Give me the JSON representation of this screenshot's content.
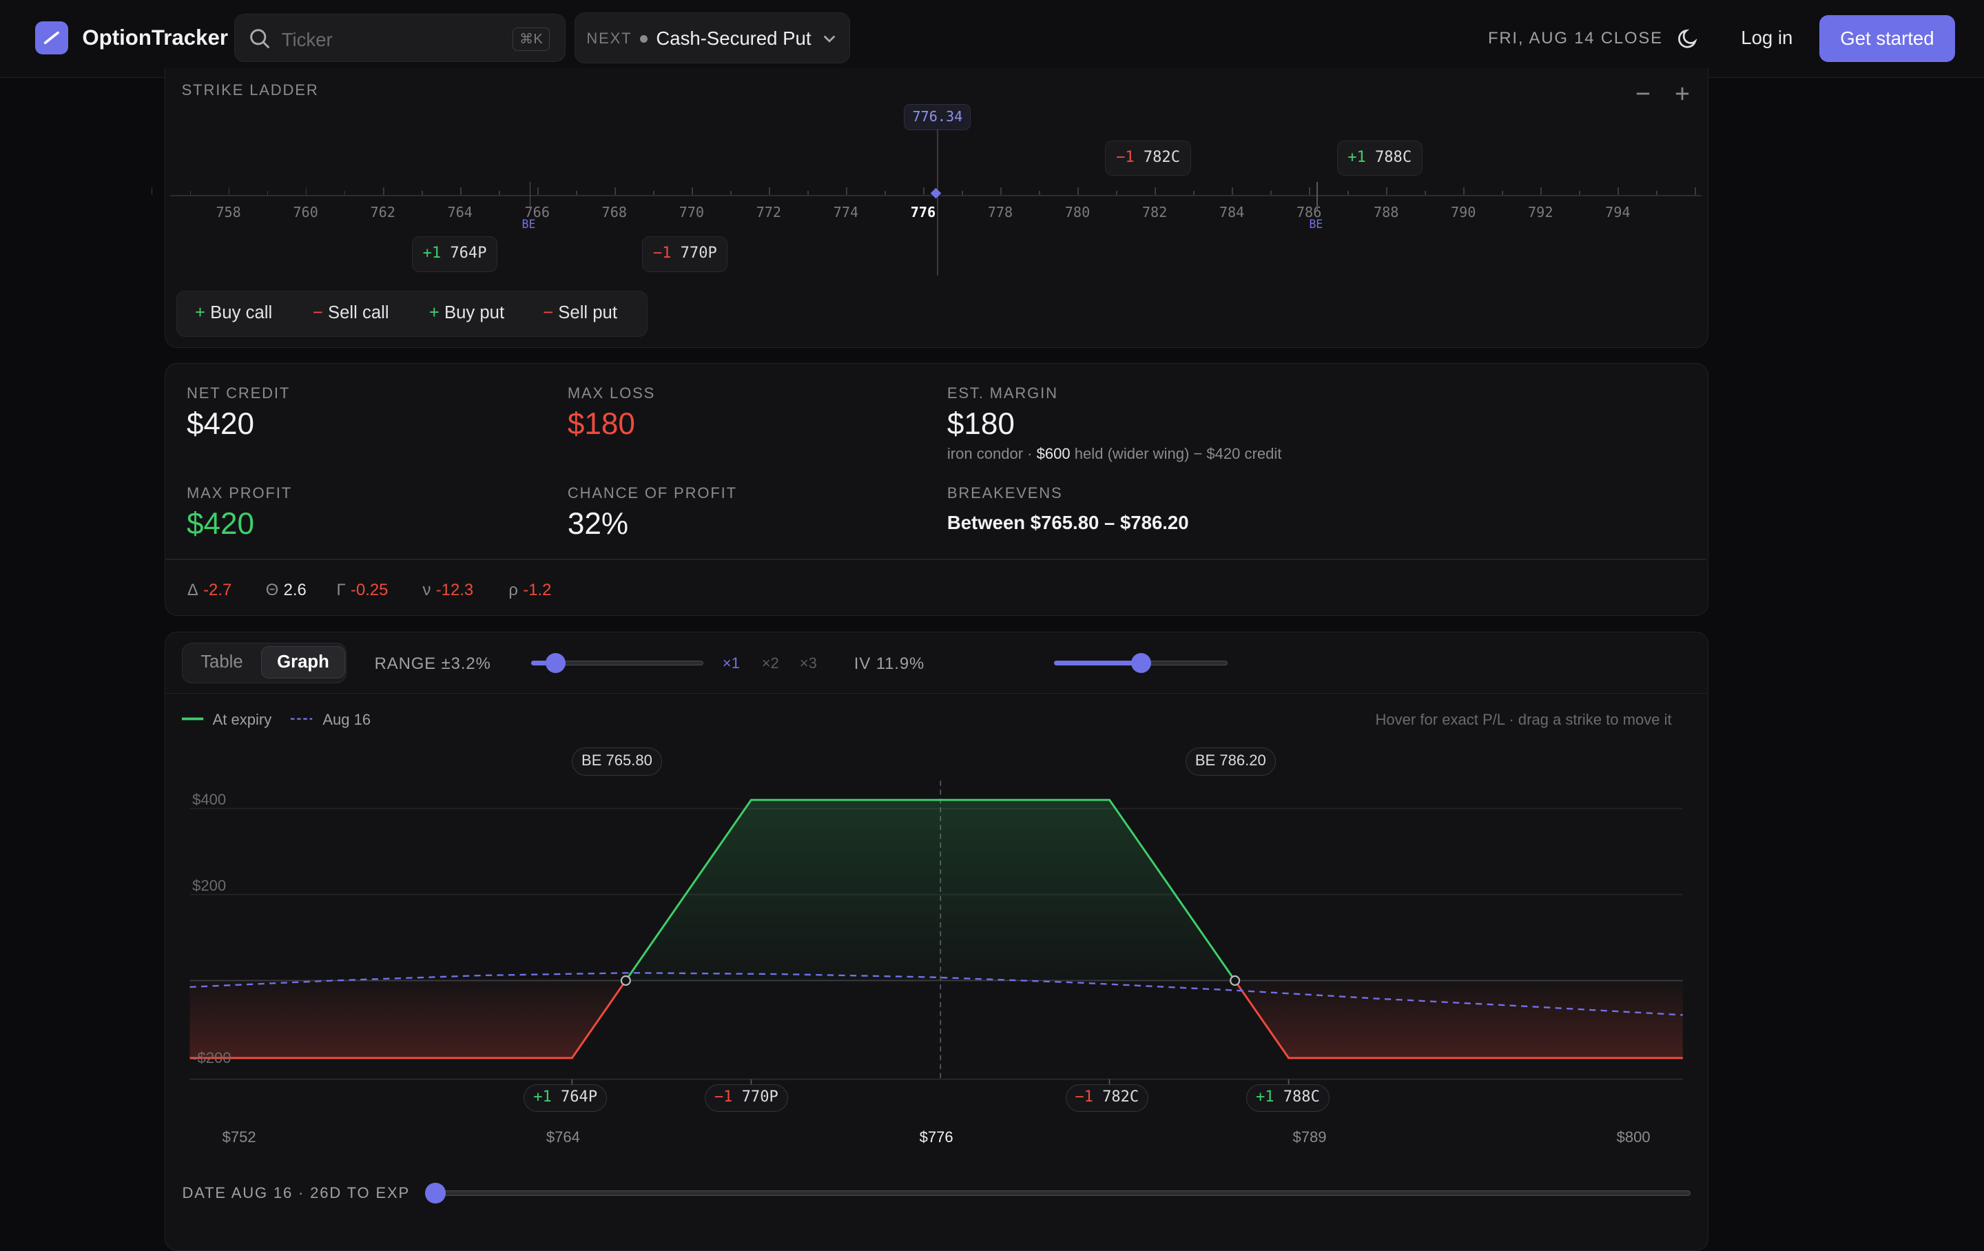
{
  "nav": {
    "brand": "OptionTracker",
    "search_placeholder": "Ticker",
    "search_shortcut": "⌘K",
    "next_label": "NEXT",
    "next_value": "Cash-Secured Put",
    "close_label": "FRI, AUG 14 CLOSE",
    "login": "Log in",
    "cta": "Get started",
    "accent": "#6e70e8"
  },
  "ladder": {
    "title": "STRIKE LADDER",
    "price": "776.34",
    "ticks": [
      "758",
      "760",
      "762",
      "764",
      "766",
      "768",
      "770",
      "772",
      "774",
      "776",
      "778",
      "780",
      "782",
      "784",
      "786",
      "788",
      "790",
      "792",
      "794"
    ],
    "be_label": "BE",
    "legs_above": [
      {
        "qty": "−1",
        "strike": "782C",
        "side": "short"
      },
      {
        "qty": "+1",
        "strike": "788C",
        "side": "long"
      }
    ],
    "legs_below": [
      {
        "qty": "+1",
        "strike": "764P",
        "side": "long"
      },
      {
        "qty": "−1",
        "strike": "770P",
        "side": "short"
      }
    ],
    "actions": [
      "Buy call",
      "Sell call",
      "Buy put",
      "Sell put"
    ]
  },
  "summary": {
    "net_credit_label": "NET CREDIT",
    "net_credit": "$420",
    "max_loss_label": "MAX LOSS",
    "max_loss": "$180",
    "margin_label": "EST. MARGIN",
    "margin": "$180",
    "margin_note_pre": "iron condor · ",
    "margin_note_bold": "$600",
    "margin_note_post": " held (wider wing) − $420 credit",
    "max_profit_label": "MAX PROFIT",
    "max_profit": "$420",
    "cop_label": "CHANCE OF PROFIT",
    "cop": "32%",
    "be_label": "BREAKEVENS",
    "be_value": "Between $765.80 – $786.20",
    "greeks": [
      {
        "sym": "Δ",
        "val": "-2.7",
        "tone": "neg"
      },
      {
        "sym": "Θ",
        "val": "2.6",
        "tone": "neutral"
      },
      {
        "sym": "Γ",
        "val": "-0.25",
        "tone": "neg"
      },
      {
        "sym": "ν",
        "val": "-12.3",
        "tone": "neg"
      },
      {
        "sym": "ρ",
        "val": "-1.2",
        "tone": "neg"
      }
    ]
  },
  "graph": {
    "tab_table": "Table",
    "tab_graph": "Graph",
    "range_label": "RANGE ±3.2%",
    "range_value": 0.09,
    "multipliers": [
      "×1",
      "×2",
      "×3"
    ],
    "iv_label": "IV 11.9%",
    "iv_value": 0.5,
    "legend_expiry": "At expiry",
    "legend_date": "Aug 16",
    "hint": "Hover for exact P/L · drag a strike to move it",
    "be_left": "BE 765.80",
    "be_right": "BE 786.20",
    "y_ticks": [
      "$400",
      "$200",
      "-$200"
    ],
    "x_ticks": [
      "$752",
      "$764",
      "$776",
      "$789",
      "$800"
    ],
    "leg_chips": [
      {
        "qty": "+1",
        "strike": "764P",
        "side": "long"
      },
      {
        "qty": "−1",
        "strike": "770P",
        "side": "short"
      },
      {
        "qty": "−1",
        "strike": "782C",
        "side": "short"
      },
      {
        "qty": "+1",
        "strike": "788C",
        "side": "long"
      }
    ],
    "date_label": "DATE AUG 16 · 26D TO EXP",
    "date_value": 0.0
  },
  "chart_data": {
    "type": "line",
    "xlim": [
      751.2,
      801.2
    ],
    "ylim": [
      -220,
      440
    ],
    "series": [
      {
        "name": "At expiry",
        "color": "#3ecf6a",
        "x": [
          751.2,
          764,
          770,
          782,
          788,
          801.2
        ],
        "y": [
          -180,
          -180,
          420,
          420,
          -180,
          -180
        ]
      },
      {
        "name": "Aug 16",
        "color": "#7072e8",
        "dash": true,
        "x": [
          751.2,
          756,
          761,
          766,
          771,
          776,
          781,
          786,
          791,
          796,
          801.2
        ],
        "y": [
          -15,
          0,
          12,
          18,
          15,
          8,
          -5,
          -22,
          -42,
          -60,
          -80
        ]
      }
    ],
    "breakevens": [
      765.8,
      786.2
    ],
    "current_price": 776.34
  }
}
